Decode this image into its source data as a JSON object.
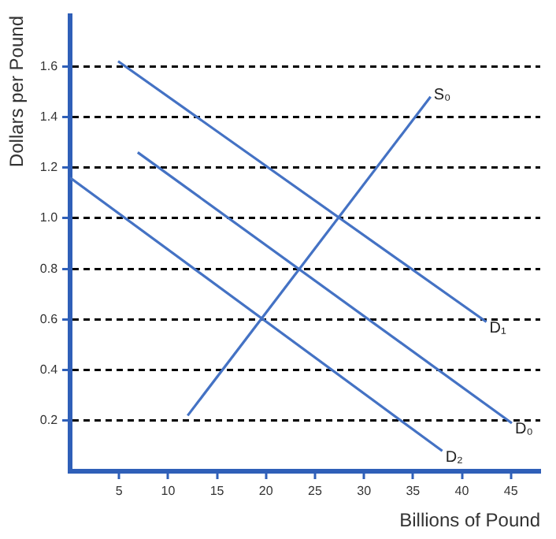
{
  "chart_data": {
    "type": "line",
    "xlabel": "Billions of Pound",
    "ylabel": "Dollars per Pound",
    "xlim": [
      0,
      48
    ],
    "ylim": [
      0,
      1.8
    ],
    "xticks": [
      5,
      10,
      15,
      20,
      25,
      30,
      35,
      40,
      45
    ],
    "yticks": [
      0.2,
      0.4,
      0.6,
      0.8,
      {
        "value": 1,
        "label": "1.0"
      },
      1.2,
      1.4,
      1.6
    ],
    "grid": "y",
    "legend": false,
    "marker": "none",
    "line_style": "solid",
    "series": [
      {
        "name": "S₀",
        "color": "#4472c4",
        "x": [
          12,
          36.8
        ],
        "values": [
          0.22,
          1.48
        ]
      },
      {
        "name": "D₁",
        "color": "#4472c4",
        "x": [
          4.9,
          42.5
        ],
        "values": [
          1.62,
          0.59
        ]
      },
      {
        "name": "D₀",
        "color": "#4472c4",
        "x": [
          6.9,
          45.1
        ],
        "values": [
          1.26,
          0.19
        ]
      },
      {
        "name": "D₂",
        "color": "#4472c4",
        "x": [
          0,
          38
        ],
        "values": [
          1.16,
          0.08
        ]
      }
    ]
  }
}
